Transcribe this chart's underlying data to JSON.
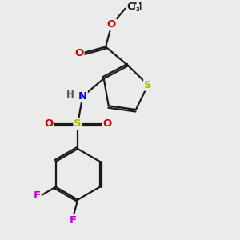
{
  "background_color": "#ebebeb",
  "bond_color": "#1a1a1a",
  "bond_width": 1.6,
  "dbo": 0.055,
  "atom_colors": {
    "S": "#b8b800",
    "N": "#0000cc",
    "O": "#cc0000",
    "F": "#cc00cc",
    "H": "#555555",
    "C": "#1a1a1a"
  },
  "fs": 9.5
}
